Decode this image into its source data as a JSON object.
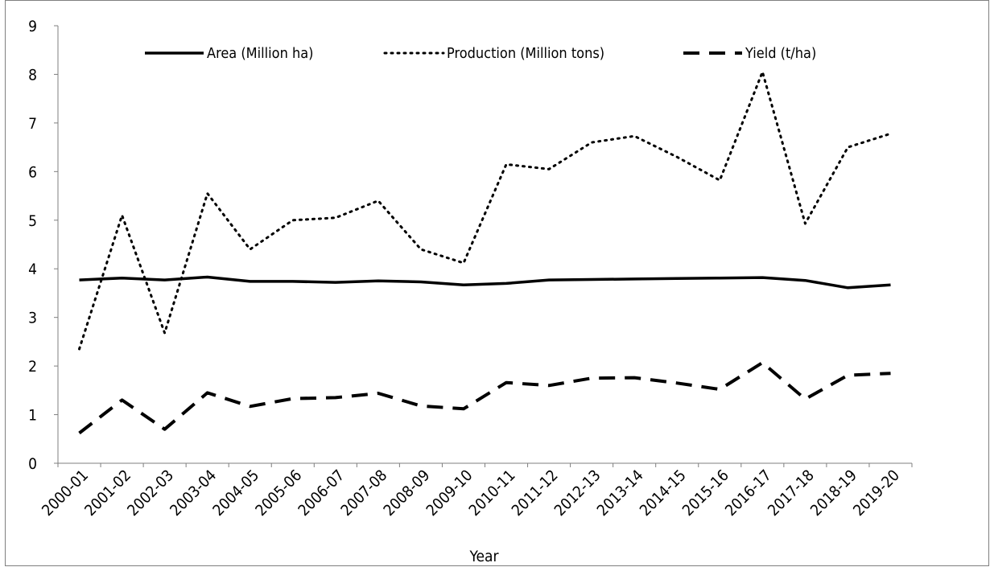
{
  "chart_data": {
    "type": "line",
    "title": "",
    "xlabel": "Year",
    "ylabel": "",
    "ylim": [
      0,
      9
    ],
    "yticks": [
      0,
      1,
      2,
      3,
      4,
      5,
      6,
      7,
      8,
      9
    ],
    "grid": false,
    "legend_position": "top",
    "categories": [
      "2000-01",
      "2001-02",
      "2002-03",
      "2003-04",
      "2004-05",
      "2005-06",
      "2006-07",
      "2007-08",
      "2008-09",
      "2009-10",
      "2010-11",
      "2011-12",
      "2012-13",
      "2013-14",
      "2014-15",
      "2015-16",
      "2016-17",
      "2017-18",
      "2018-19",
      "2019-20"
    ],
    "series": [
      {
        "name": "Area (Million ha)",
        "style": "solid",
        "color": "#000000",
        "values": [
          3.77,
          3.81,
          3.77,
          3.83,
          3.74,
          3.74,
          3.72,
          3.75,
          3.73,
          3.67,
          3.7,
          3.77,
          3.78,
          3.79,
          3.8,
          3.81,
          3.82,
          3.76,
          3.61,
          3.67
        ]
      },
      {
        "name": "Production (Million tons)",
        "style": "dotted",
        "color": "#000000",
        "values": [
          2.35,
          5.1,
          2.68,
          5.55,
          4.4,
          5.0,
          5.05,
          5.4,
          4.4,
          4.12,
          6.15,
          6.05,
          6.6,
          6.73,
          6.3,
          5.82,
          8.05,
          4.93,
          6.5,
          6.78
        ]
      },
      {
        "name": "Yield (t/ha)",
        "style": "dashed",
        "color": "#000000",
        "values": [
          0.62,
          1.3,
          0.7,
          1.45,
          1.17,
          1.33,
          1.35,
          1.44,
          1.18,
          1.12,
          1.66,
          1.6,
          1.75,
          1.76,
          1.65,
          1.52,
          2.07,
          1.32,
          1.81,
          1.85
        ]
      }
    ]
  }
}
